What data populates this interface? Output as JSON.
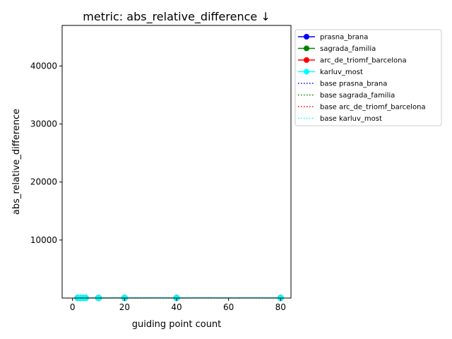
{
  "chart_data": {
    "type": "line",
    "title": "metric: abs_relative_difference ↓",
    "xlabel": "guiding point count",
    "ylabel": "abs_relative_difference",
    "xlim": [
      -4,
      84
    ],
    "ylim": [
      0,
      47000
    ],
    "xticks": [
      0,
      20,
      40,
      60,
      80
    ],
    "yticks": [
      10000,
      20000,
      30000,
      40000
    ],
    "grid": false,
    "legend_position": "outside-right",
    "x": [
      2,
      3,
      4,
      5,
      10,
      20,
      40,
      80
    ],
    "series": [
      {
        "name": "prasna_brana",
        "color": "#0000ff",
        "style": "solid-marker",
        "values": [
          35,
          33,
          31,
          30,
          28,
          26,
          25,
          24
        ]
      },
      {
        "name": "sagrada_familia",
        "color": "#008000",
        "style": "solid-marker",
        "values": [
          30,
          29,
          28,
          27,
          25,
          24,
          23,
          22
        ]
      },
      {
        "name": "arc_de_triomf_barcelona",
        "color": "#ff0000",
        "style": "solid-marker",
        "values": [
          32,
          31,
          30,
          29,
          27,
          25,
          24,
          23
        ]
      },
      {
        "name": "karluv_most",
        "color": "#00ffff",
        "style": "solid-marker",
        "values": [
          34,
          32,
          31,
          30,
          28,
          26,
          25,
          24
        ]
      },
      {
        "name": "base prasna_brana",
        "color": "#0000ff",
        "style": "dotted",
        "values": [
          20,
          20,
          20,
          20,
          20,
          20,
          20,
          20
        ]
      },
      {
        "name": "base sagrada_familia",
        "color": "#008000",
        "style": "dotted",
        "values": [
          18,
          18,
          18,
          18,
          18,
          18,
          18,
          18
        ]
      },
      {
        "name": "base arc_de_triomf_barcelona",
        "color": "#ff0000",
        "style": "dotted",
        "values": [
          19,
          19,
          19,
          19,
          19,
          19,
          19,
          19
        ]
      },
      {
        "name": "base karluv_most",
        "color": "#00ffff",
        "style": "dotted",
        "values": [
          20,
          20,
          20,
          20,
          20,
          20,
          20,
          20
        ]
      }
    ]
  }
}
